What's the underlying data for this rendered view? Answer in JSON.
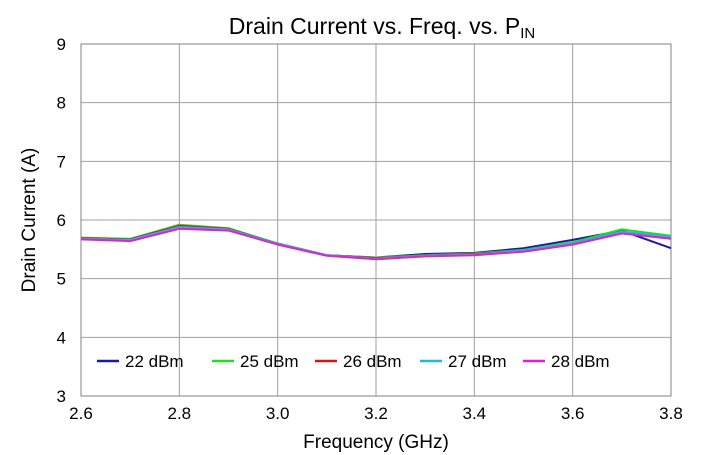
{
  "chart_data": {
    "type": "line",
    "title": "Drain Current vs. Freq. vs. P",
    "title_subscript": "IN",
    "xlabel": "Frequency (GHz)",
    "ylabel": "Drain Current (A)",
    "xlim": [
      2.6,
      3.8
    ],
    "ylim": [
      3,
      9
    ],
    "x_ticks": [
      "2.6",
      "2.8",
      "3.0",
      "3.2",
      "3.4",
      "3.6",
      "3.8"
    ],
    "y_ticks": [
      "3",
      "4",
      "5",
      "6",
      "7",
      "8",
      "9"
    ],
    "grid": true,
    "legend_position": "bottom-inside",
    "x": [
      2.6,
      2.7,
      2.8,
      2.9,
      3.0,
      3.1,
      3.2,
      3.3,
      3.4,
      3.5,
      3.6,
      3.7,
      3.8
    ],
    "series": [
      {
        "name": "22 dBm",
        "color": "#1a1aa8",
        "values": [
          5.69,
          5.67,
          5.9,
          5.84,
          5.6,
          5.4,
          5.36,
          5.42,
          5.44,
          5.52,
          5.66,
          5.82,
          5.52
        ]
      },
      {
        "name": "25 dBm",
        "color": "#22dd22",
        "values": [
          5.7,
          5.68,
          5.92,
          5.86,
          5.6,
          5.4,
          5.36,
          5.4,
          5.43,
          5.49,
          5.62,
          5.84,
          5.73
        ]
      },
      {
        "name": "26 dBm",
        "color": "#e01010",
        "values": [
          5.69,
          5.67,
          5.9,
          5.85,
          5.59,
          5.4,
          5.35,
          5.39,
          5.42,
          5.48,
          5.6,
          5.8,
          5.7
        ]
      },
      {
        "name": "27 dBm",
        "color": "#22b8dd",
        "values": [
          5.68,
          5.66,
          5.88,
          5.84,
          5.59,
          5.4,
          5.34,
          5.39,
          5.41,
          5.48,
          5.6,
          5.8,
          5.71
        ]
      },
      {
        "name": "28 dBm",
        "color": "#e020d8",
        "values": [
          5.67,
          5.64,
          5.85,
          5.82,
          5.58,
          5.39,
          5.33,
          5.38,
          5.4,
          5.46,
          5.58,
          5.77,
          5.68
        ]
      }
    ]
  }
}
